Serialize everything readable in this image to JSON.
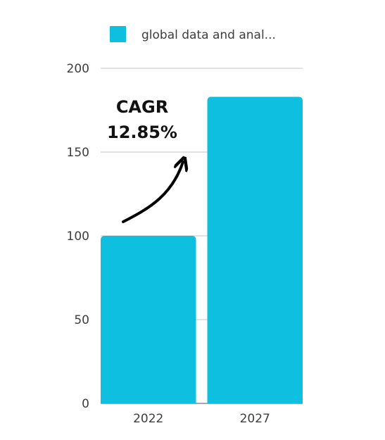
{
  "chart_data": {
    "type": "bar",
    "categories": [
      "2022",
      "2027"
    ],
    "series": [
      {
        "name": "global data and anal...",
        "values": [
          100,
          183
        ],
        "color": "#0fbfdf"
      }
    ],
    "ylim": [
      0,
      200
    ],
    "yticks": [
      0,
      50,
      100,
      150,
      200
    ],
    "grid": true,
    "legend": "top",
    "annotation": {
      "lines": [
        "CAGR",
        "12.85%"
      ],
      "arrow": true
    }
  }
}
